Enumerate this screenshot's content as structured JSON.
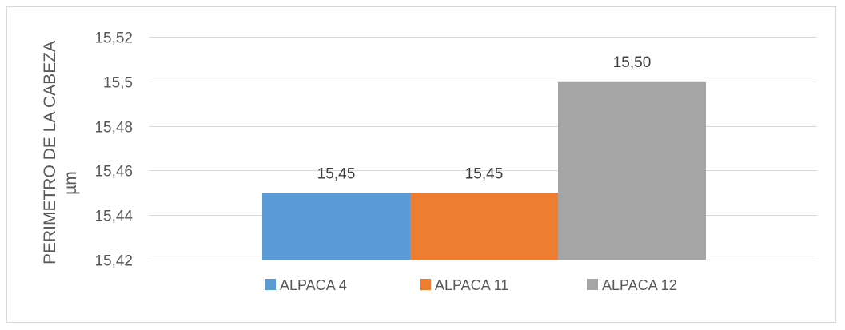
{
  "chart_data": {
    "type": "bar",
    "title": "",
    "ylabel_line1": "PERIMETRO DE LA CABEZA",
    "ylabel_line2": "µm",
    "xlabel": "",
    "ylim": [
      15.42,
      15.52
    ],
    "yticks": [
      {
        "value": 15.42,
        "label": "15,42"
      },
      {
        "value": 15.44,
        "label": "15,44"
      },
      {
        "value": 15.46,
        "label": "15,46"
      },
      {
        "value": 15.48,
        "label": "15,48"
      },
      {
        "value": 15.5,
        "label": "15,5"
      },
      {
        "value": 15.52,
        "label": "15,52"
      }
    ],
    "grid": true,
    "legend_position": "bottom",
    "series": [
      {
        "name": "ALPACA 4",
        "value": 15.45,
        "label": "15,45",
        "color": "#5b9bd5"
      },
      {
        "name": "ALPACA 11",
        "value": 15.45,
        "label": "15,45",
        "color": "#ed7d31"
      },
      {
        "name": "ALPACA 12",
        "value": 15.5,
        "label": "15,50",
        "color": "#a5a5a5"
      }
    ]
  }
}
